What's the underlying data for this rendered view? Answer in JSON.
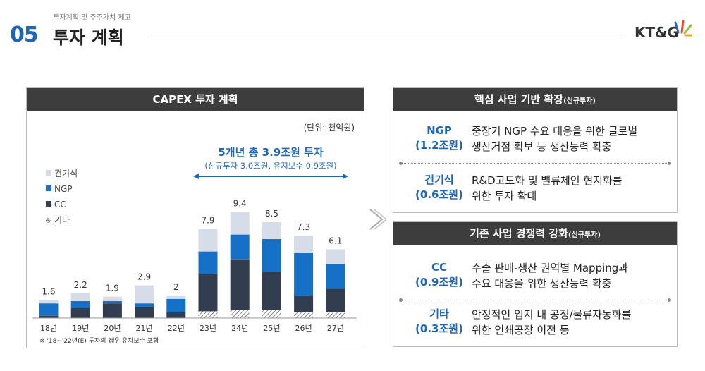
{
  "header": {
    "breadcrumb": "투자계획 및 주주가치 제고",
    "section_number": "05",
    "section_title": "투자 계획",
    "logo_text": "KT&G"
  },
  "capex_panel": {
    "title": "CAPEX 투자 계획",
    "unit": "(단위: 천억원)",
    "highlight": "5개년 총 3.9조원 투자",
    "highlight_sub": "(신규투자 3.0조원, 유지보수 0.9조원)",
    "footnote": "※ '18~'22년(E) 투자의 경우 유지보수 포함"
  },
  "chart_data": {
    "type": "bar",
    "stacked": true,
    "categories": [
      "18년",
      "19년",
      "20년",
      "21년",
      "22년",
      "23년",
      "24년",
      "25년",
      "26년",
      "27년"
    ],
    "totals": [
      1.6,
      2.2,
      1.9,
      2.9,
      2.0,
      7.9,
      9.4,
      8.5,
      7.3,
      6.1
    ],
    "series": [
      {
        "name": "기타",
        "color": "#ffffff",
        "pattern": "hatch",
        "values": [
          0,
          0,
          0,
          0,
          0,
          0.6,
          0.7,
          0.7,
          0.5,
          0.5
        ]
      },
      {
        "name": "CC",
        "color": "#333d50",
        "values": [
          0.2,
          0.9,
          1.3,
          1.0,
          0.5,
          3.3,
          4.5,
          3.4,
          1.5,
          2.1
        ]
      },
      {
        "name": "NGP",
        "color": "#1570c6",
        "values": [
          1.1,
          0.6,
          0.2,
          0.3,
          1.2,
          2.0,
          2.2,
          2.9,
          3.8,
          2.2
        ]
      },
      {
        "name": "건기식",
        "color": "#d6dde8",
        "values": [
          0.3,
          0.7,
          0.4,
          1.6,
          0.3,
          2.0,
          2.0,
          1.5,
          1.5,
          1.3
        ]
      }
    ],
    "legend": [
      "건기식",
      "NGP",
      "CC",
      "기타"
    ],
    "legend_position": "left",
    "grid": false,
    "ylim": [
      0,
      10
    ]
  },
  "core_expansion": {
    "title": "핵심 사업 기반 확장",
    "title_note": "(신규투자)",
    "items": [
      {
        "label": "NGP",
        "amount": "(1.2조원)",
        "desc": [
          "중장기 NGP 수요 대응을 위한 글로벌",
          "생산거점 확보 등 생산능력 확충"
        ]
      },
      {
        "label": "건기식",
        "amount": "(0.6조원)",
        "desc": [
          "R&D고도화 및 밸류체인 현지화를",
          "위한 투자 확대"
        ]
      }
    ]
  },
  "competitiveness": {
    "title": "기존 사업 경쟁력 강화",
    "title_note": "(신규투자)",
    "items": [
      {
        "label": "CC",
        "amount": "(0.9조원)",
        "desc": [
          "수출 판매-생산 권역별 Mapping과",
          "수요 대응을 위한 생산능력 확충"
        ]
      },
      {
        "label": "기타",
        "amount": "(0.3조원)",
        "desc": [
          "안정적인 입지 내 공정/물류자동화를",
          "위한 인쇄공장 이전 등"
        ]
      }
    ]
  }
}
